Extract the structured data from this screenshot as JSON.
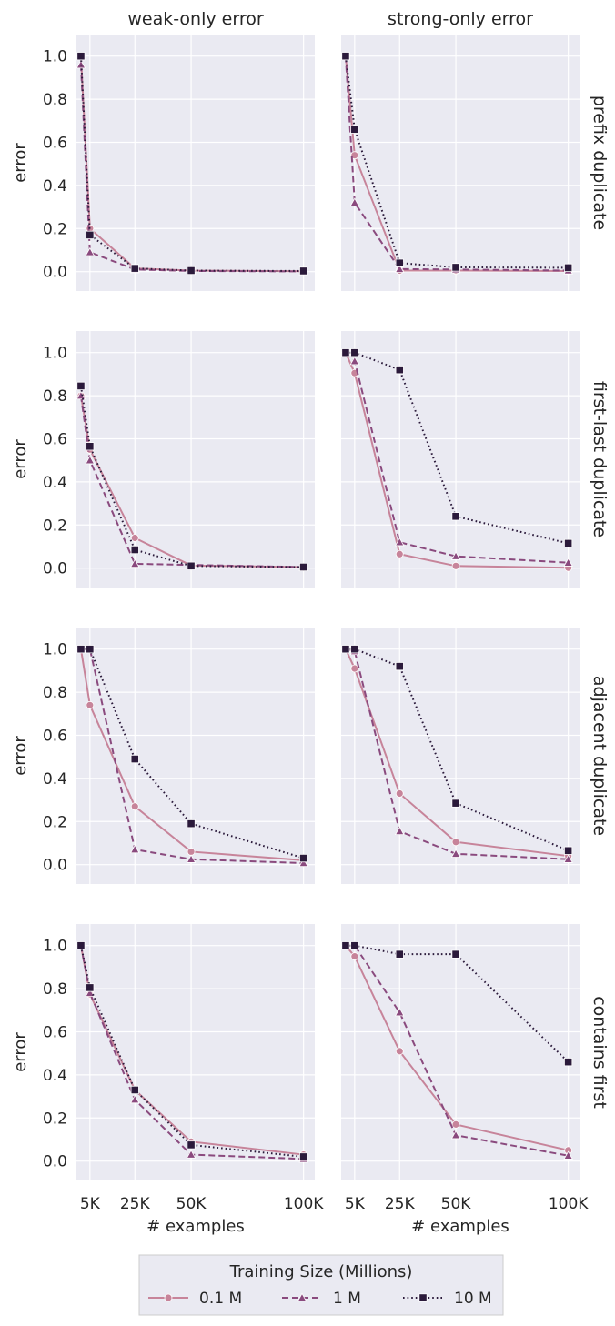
{
  "figure": {
    "col_titles": [
      "weak-only error",
      "strong-only error"
    ],
    "row_titles": [
      "prefix duplicate",
      "first-last duplicate",
      "adjacent duplicate",
      "contains first"
    ],
    "xlabel": "# examples",
    "ylabel": "error",
    "legend": {
      "title": "Training Size (Millions)",
      "labels": [
        "0.1 M",
        "1 M",
        "10 M"
      ]
    }
  },
  "chart_data": {
    "type": "line",
    "grid": true,
    "legend_placement": "bottom-center",
    "x": [
      1000,
      5000,
      25000,
      50000,
      100000
    ],
    "xticks": [
      5000,
      25000,
      50000,
      100000
    ],
    "xticklabels": [
      "5K",
      "25K",
      "50K",
      "100K"
    ],
    "xlim": [
      -1000,
      105000
    ],
    "yticks": [
      0.0,
      0.2,
      0.4,
      0.6,
      0.8,
      1.0
    ],
    "yticklabels": [
      "0.0",
      "0.2",
      "0.4",
      "0.6",
      "0.8",
      "1.0"
    ],
    "ylim": [
      -0.09,
      1.1
    ],
    "series_styles": [
      {
        "name": "0.1 M",
        "color": "#c7849a",
        "marker": "circle",
        "dash": "solid"
      },
      {
        "name": "1 M",
        "color": "#8a4a7e",
        "marker": "triangle",
        "dash": "dashed"
      },
      {
        "name": "10 M",
        "color": "#2b1a3b",
        "marker": "square",
        "dash": "dotted"
      }
    ],
    "panels": [
      {
        "row": "prefix duplicate",
        "col": "weak-only error",
        "series": [
          {
            "name": "0.1 M",
            "values": [
              1.0,
              0.2,
              0.015,
              0.005,
              0.002
            ]
          },
          {
            "name": "1 M",
            "values": [
              0.96,
              0.09,
              0.01,
              0.003,
              0.001
            ]
          },
          {
            "name": "10 M",
            "values": [
              1.0,
              0.17,
              0.015,
              0.005,
              0.003
            ]
          }
        ]
      },
      {
        "row": "prefix duplicate",
        "col": "strong-only error",
        "series": [
          {
            "name": "0.1 M",
            "values": [
              1.0,
              0.54,
              0.005,
              0.005,
              0.003
            ]
          },
          {
            "name": "1 M",
            "values": [
              1.0,
              0.32,
              0.012,
              0.01,
              0.005
            ]
          },
          {
            "name": "10 M",
            "values": [
              1.0,
              0.66,
              0.04,
              0.02,
              0.018
            ]
          }
        ]
      },
      {
        "row": "first-last duplicate",
        "col": "weak-only error",
        "series": [
          {
            "name": "0.1 M",
            "values": [
              0.8,
              0.55,
              0.14,
              0.012,
              0.005
            ]
          },
          {
            "name": "1 M",
            "values": [
              0.8,
              0.5,
              0.02,
              0.015,
              0.005
            ]
          },
          {
            "name": "10 M",
            "values": [
              0.845,
              0.565,
              0.085,
              0.01,
              0.005
            ]
          }
        ]
      },
      {
        "row": "first-last duplicate",
        "col": "strong-only error",
        "series": [
          {
            "name": "0.1 M",
            "values": [
              1.0,
              0.905,
              0.065,
              0.01,
              0.002
            ]
          },
          {
            "name": "1 M",
            "values": [
              1.0,
              0.96,
              0.12,
              0.055,
              0.025
            ]
          },
          {
            "name": "10 M",
            "values": [
              1.0,
              1.0,
              0.92,
              0.24,
              0.115
            ]
          }
        ]
      },
      {
        "row": "adjacent duplicate",
        "col": "weak-only error",
        "series": [
          {
            "name": "0.1 M",
            "values": [
              1.0,
              0.74,
              0.27,
              0.06,
              0.02
            ]
          },
          {
            "name": "1 M",
            "values": [
              1.0,
              1.0,
              0.07,
              0.025,
              0.007
            ]
          },
          {
            "name": "10 M",
            "values": [
              1.0,
              1.0,
              0.49,
              0.19,
              0.03
            ]
          }
        ]
      },
      {
        "row": "adjacent duplicate",
        "col": "strong-only error",
        "series": [
          {
            "name": "0.1 M",
            "values": [
              1.0,
              0.91,
              0.33,
              0.105,
              0.04
            ]
          },
          {
            "name": "1 M",
            "values": [
              1.0,
              0.99,
              0.155,
              0.05,
              0.025
            ]
          },
          {
            "name": "10 M",
            "values": [
              1.0,
              1.0,
              0.92,
              0.285,
              0.065
            ]
          }
        ]
      },
      {
        "row": "contains first",
        "col": "weak-only error",
        "series": [
          {
            "name": "0.1 M",
            "values": [
              1.0,
              0.775,
              0.33,
              0.09,
              0.03
            ]
          },
          {
            "name": "1 M",
            "values": [
              1.0,
              0.78,
              0.285,
              0.03,
              0.01
            ]
          },
          {
            "name": "10 M",
            "values": [
              1.0,
              0.805,
              0.33,
              0.075,
              0.02
            ]
          }
        ]
      },
      {
        "row": "contains first",
        "col": "strong-only error",
        "series": [
          {
            "name": "0.1 M",
            "values": [
              1.0,
              0.95,
              0.51,
              0.17,
              0.05
            ]
          },
          {
            "name": "1 M",
            "values": [
              1.0,
              1.0,
              0.69,
              0.12,
              0.025
            ]
          },
          {
            "name": "10 M",
            "values": [
              1.0,
              1.0,
              0.96,
              0.96,
              0.46
            ]
          }
        ]
      }
    ]
  }
}
